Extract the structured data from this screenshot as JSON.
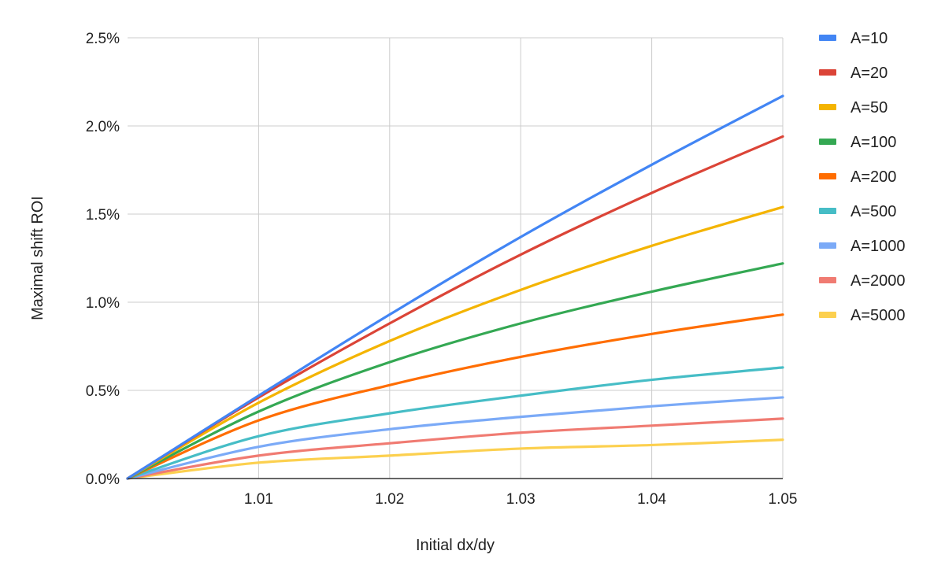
{
  "chart_data": {
    "type": "line",
    "title": "",
    "xlabel": "Initial dx/dy",
    "ylabel": "Maximal shift ROI",
    "xlim": [
      1.0,
      1.05
    ],
    "ylim": [
      0,
      2.5
    ],
    "y_unit": "%",
    "x_ticks": [
      "1.01",
      "1.02",
      "1.03",
      "1.04",
      "1.05"
    ],
    "x_tick_values": [
      1.01,
      1.02,
      1.03,
      1.04,
      1.05
    ],
    "y_ticks": [
      "0.0%",
      "0.5%",
      "1.0%",
      "1.5%",
      "2.0%",
      "2.5%"
    ],
    "y_tick_values": [
      0,
      0.5,
      1.0,
      1.5,
      2.0,
      2.5
    ],
    "grid": true,
    "legend_position": "right",
    "x": [
      1.0,
      1.01,
      1.02,
      1.03,
      1.04,
      1.05
    ],
    "series": [
      {
        "name": "A=10",
        "color": "#4285F4",
        "values": [
          0,
          0.47,
          0.93,
          1.37,
          1.78,
          2.17
        ]
      },
      {
        "name": "A=20",
        "color": "#DB4437",
        "values": [
          0,
          0.46,
          0.88,
          1.27,
          1.62,
          1.94
        ]
      },
      {
        "name": "A=50",
        "color": "#F4B400",
        "values": [
          0,
          0.43,
          0.78,
          1.07,
          1.32,
          1.54
        ]
      },
      {
        "name": "A=100",
        "color": "#34A853",
        "values": [
          0,
          0.38,
          0.66,
          0.88,
          1.06,
          1.22
        ]
      },
      {
        "name": "A=200",
        "color": "#FF6D00",
        "values": [
          0,
          0.33,
          0.53,
          0.69,
          0.82,
          0.93
        ]
      },
      {
        "name": "A=500",
        "color": "#46BDC6",
        "values": [
          0,
          0.24,
          0.37,
          0.47,
          0.56,
          0.63
        ]
      },
      {
        "name": "A=1000",
        "color": "#7BAAF7",
        "values": [
          0,
          0.18,
          0.28,
          0.35,
          0.41,
          0.46
        ]
      },
      {
        "name": "A=2000",
        "color": "#F07B72",
        "values": [
          0,
          0.13,
          0.2,
          0.26,
          0.3,
          0.34
        ]
      },
      {
        "name": "A=5000",
        "color": "#FCD04F",
        "values": [
          0,
          0.09,
          0.13,
          0.17,
          0.19,
          0.22
        ]
      }
    ]
  }
}
